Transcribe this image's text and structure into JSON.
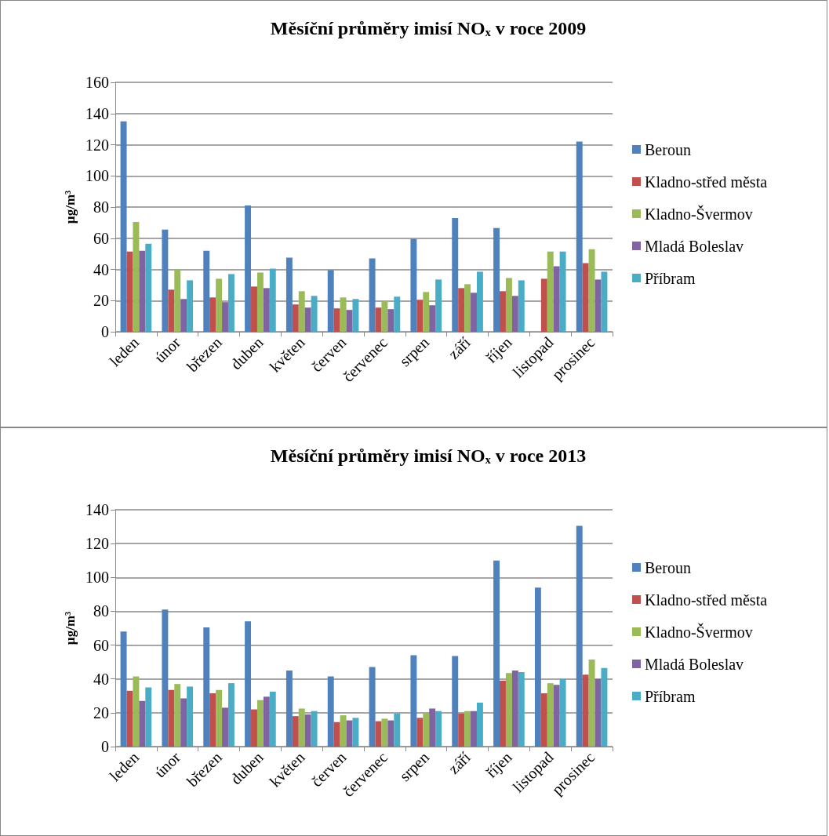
{
  "chart_data": [
    {
      "type": "bar",
      "title": "Měsíční průměry imisí NOₓ v roce 2009",
      "ylabel": "µg/m³",
      "categories": [
        "leden",
        "únor",
        "březen",
        "duben",
        "květen",
        "červen",
        "červenec",
        "srpen",
        "září",
        "říjen",
        "listopad",
        "prosinec"
      ],
      "series": [
        {
          "name": "Beroun",
          "color": "#4f81bd",
          "values": [
            135,
            65.5,
            52,
            81,
            47.5,
            39.5,
            47,
            59.5,
            73,
            66.5,
            null,
            122
          ]
        },
        {
          "name": "Kladno-střed města",
          "color": "#c0504d",
          "values": [
            51.5,
            27,
            22,
            29,
            17.5,
            15,
            15.5,
            20.5,
            28,
            26,
            34,
            44
          ]
        },
        {
          "name": "Kladno-Švermov",
          "color": "#9bbb59",
          "values": [
            70.5,
            40,
            34,
            38,
            26,
            22,
            19.5,
            25.5,
            30.5,
            34.5,
            51.5,
            53
          ]
        },
        {
          "name": "Mladá Boleslav",
          "color": "#8064a2",
          "values": [
            52,
            21,
            19,
            28,
            15.5,
            14,
            14.5,
            17,
            25,
            23,
            42,
            33.5
          ]
        },
        {
          "name": "Příbram",
          "color": "#4bacc6",
          "values": [
            56.5,
            33,
            37,
            40.5,
            23,
            21,
            22.5,
            33.5,
            38.5,
            33,
            51.5,
            38.5
          ]
        }
      ],
      "ylim": [
        0,
        160
      ],
      "yticks": [
        0,
        20,
        40,
        60,
        80,
        100,
        120,
        140,
        160
      ],
      "grid": "y",
      "legend": "right"
    },
    {
      "type": "bar",
      "title": "Měsíční průměry imisí NOₓ v roce 2013",
      "ylabel": "µg/m³",
      "categories": [
        "leden",
        "únor",
        "březen",
        "duben",
        "květen",
        "červen",
        "červenec",
        "srpen",
        "září",
        "říjen",
        "listopad",
        "prosinec"
      ],
      "series": [
        {
          "name": "Beroun",
          "color": "#4f81bd",
          "values": [
            68,
            81,
            70.5,
            74,
            45,
            41.5,
            47,
            54,
            53.5,
            110,
            94,
            130.5
          ]
        },
        {
          "name": "Kladno-střed města",
          "color": "#c0504d",
          "values": [
            33,
            33.5,
            31.5,
            22,
            18,
            14.5,
            15,
            17,
            19.5,
            39,
            31.5,
            42.5
          ]
        },
        {
          "name": "Kladno-Švermov",
          "color": "#9bbb59",
          "values": [
            41.5,
            37,
            33.5,
            27.5,
            22.5,
            18.5,
            16.5,
            19.5,
            21,
            43.5,
            37.5,
            51.5
          ]
        },
        {
          "name": "Mladá Boleslav",
          "color": "#8064a2",
          "values": [
            27,
            28.5,
            23,
            29.5,
            19,
            15.5,
            15.5,
            22.5,
            21,
            45,
            36.5,
            40
          ]
        },
        {
          "name": "Příbram",
          "color": "#4bacc6",
          "values": [
            35,
            35.5,
            37.5,
            32.5,
            21,
            17,
            19.5,
            21,
            26,
            44,
            40,
            46.5
          ]
        }
      ],
      "ylim": [
        0,
        140
      ],
      "yticks": [
        0,
        20,
        40,
        60,
        80,
        100,
        120,
        140
      ],
      "grid": "y",
      "legend": "right"
    }
  ]
}
